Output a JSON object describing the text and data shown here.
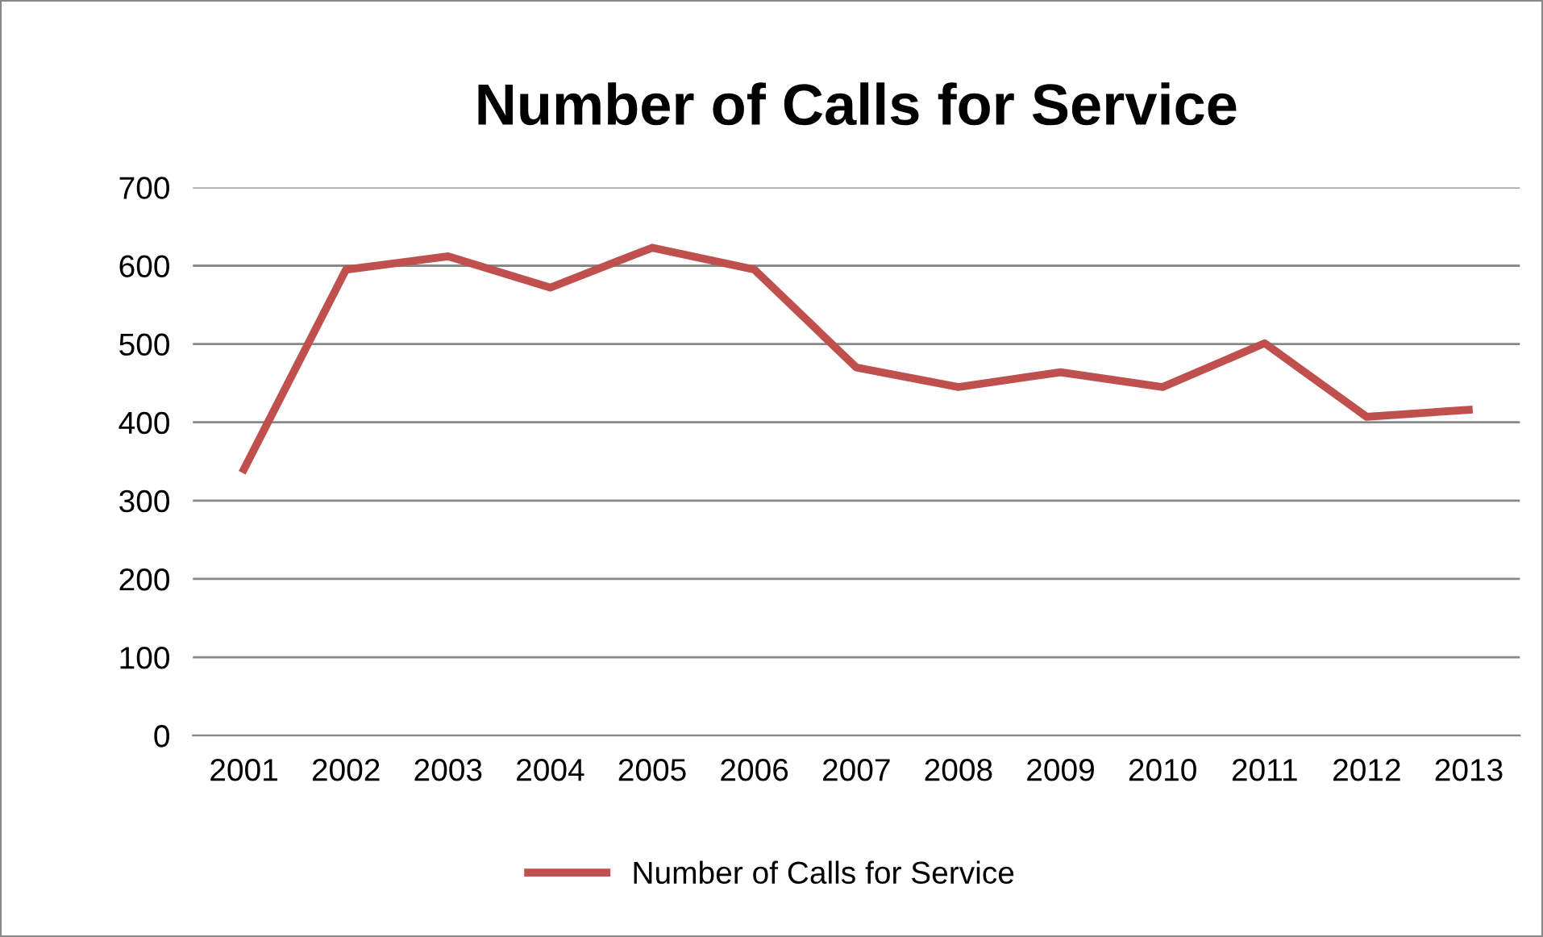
{
  "chart_data": {
    "type": "line",
    "title": "Number of Calls for Service",
    "categories": [
      "2001",
      "2002",
      "2003",
      "2004",
      "2005",
      "2006",
      "2007",
      "2008",
      "2009",
      "2010",
      "2011",
      "2012",
      "2013"
    ],
    "series": [
      {
        "name": "Number of Calls for Service",
        "color": "#c0504d",
        "values": [
          340,
          595,
          612,
          572,
          623,
          595,
          470,
          445,
          464,
          445,
          501,
          407,
          416
        ]
      }
    ],
    "ylim": [
      0,
      700
    ],
    "yticks": [
      0,
      100,
      200,
      300,
      400,
      500,
      600,
      700
    ],
    "grid": "y",
    "legend": "bottom",
    "marker": "none",
    "line_style": "solid"
  }
}
